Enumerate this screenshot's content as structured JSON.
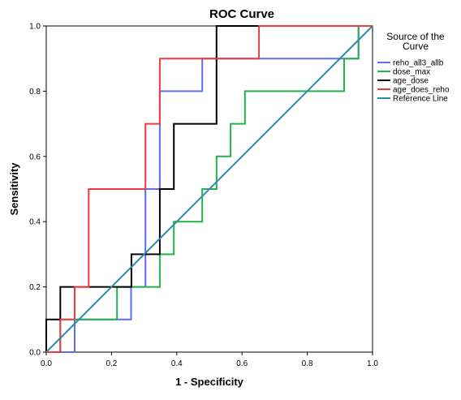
{
  "chart_data": {
    "type": "line",
    "title": "ROC Curve",
    "xlabel": "1 - Specificity",
    "ylabel": "Sensitivity",
    "xlim": [
      0.0,
      1.0
    ],
    "ylim": [
      0.0,
      1.0
    ],
    "xticks": [
      "0.0",
      "0.2",
      "0.4",
      "0.6",
      "0.8",
      "1.0"
    ],
    "yticks": [
      "0.0",
      "0.2",
      "0.4",
      "0.6",
      "0.8",
      "1.0"
    ],
    "grid": false,
    "legend": {
      "title_lines": [
        "Source of the",
        "Curve"
      ],
      "placement": "right"
    },
    "series": [
      {
        "name": "reho_all3_allb",
        "color": "#5b6ef5",
        "x": [
          0,
          0.087,
          0.087,
          0.26,
          0.26,
          0.304,
          0.304,
          0.348,
          0.348,
          0.478,
          0.478,
          0.913,
          0.913,
          0.957,
          0.957,
          1.0
        ],
        "y": [
          0,
          0,
          0.1,
          0.1,
          0.2,
          0.2,
          0.5,
          0.5,
          0.8,
          0.8,
          0.9,
          0.9,
          0.9,
          0.9,
          1.0,
          1.0
        ]
      },
      {
        "name": "dose_max",
        "color": "#21b34a",
        "x": [
          0,
          0.043,
          0.043,
          0.217,
          0.217,
          0.348,
          0.348,
          0.391,
          0.391,
          0.478,
          0.478,
          0.522,
          0.522,
          0.565,
          0.565,
          0.609,
          0.609,
          0.913,
          0.913,
          0.957,
          0.957,
          1.0
        ],
        "y": [
          0,
          0,
          0.1,
          0.1,
          0.2,
          0.2,
          0.3,
          0.3,
          0.4,
          0.4,
          0.5,
          0.5,
          0.6,
          0.6,
          0.7,
          0.7,
          0.8,
          0.8,
          0.9,
          0.9,
          1.0,
          1.0
        ]
      },
      {
        "name": "age_dose",
        "color": "#000000",
        "x": [
          0,
          0,
          0.043,
          0.043,
          0.261,
          0.261,
          0.348,
          0.348,
          0.391,
          0.391,
          0.522,
          0.522,
          1.0
        ],
        "y": [
          0,
          0.1,
          0.1,
          0.2,
          0.2,
          0.3,
          0.3,
          0.5,
          0.5,
          0.7,
          0.7,
          1.0,
          1.0
        ]
      },
      {
        "name": "age_does_reho",
        "color": "#ee3b3b",
        "x": [
          0,
          0.043,
          0.043,
          0.087,
          0.087,
          0.13,
          0.13,
          0.304,
          0.304,
          0.348,
          0.348,
          0.652,
          0.652,
          1.0
        ],
        "y": [
          0,
          0,
          0.1,
          0.1,
          0.2,
          0.2,
          0.5,
          0.5,
          0.7,
          0.7,
          0.9,
          0.9,
          1.0,
          1.0
        ]
      },
      {
        "name": "Reference Line",
        "color": "#2a8aa8",
        "x": [
          0,
          1
        ],
        "y": [
          0,
          1
        ]
      }
    ]
  }
}
